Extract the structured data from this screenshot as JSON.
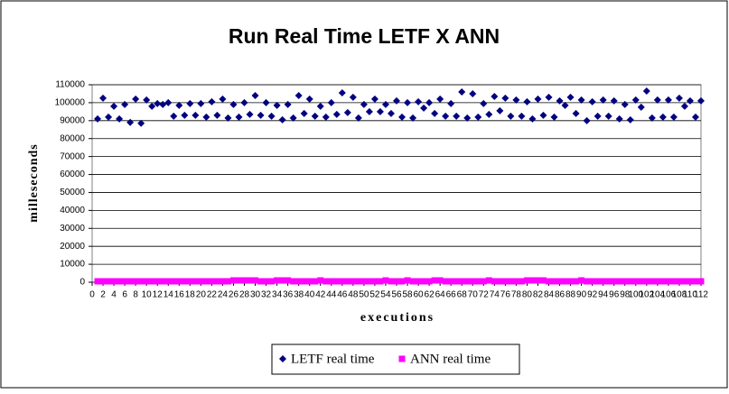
{
  "chart_data": {
    "type": "scatter",
    "title": "Run Real Time LETF X ANN",
    "x_label": "executions",
    "y_label": "milleseconds",
    "x": [
      1,
      2,
      3,
      4,
      5,
      6,
      7,
      8,
      9,
      10,
      11,
      12,
      13,
      14,
      15,
      16,
      17,
      18,
      19,
      20,
      21,
      22,
      23,
      24,
      25,
      26,
      27,
      28,
      29,
      30,
      31,
      32,
      33,
      34,
      35,
      36,
      37,
      38,
      39,
      40,
      41,
      42,
      43,
      44,
      45,
      46,
      47,
      48,
      49,
      50,
      51,
      52,
      53,
      54,
      55,
      56,
      57,
      58,
      59,
      60,
      61,
      62,
      63,
      64,
      65,
      66,
      67,
      68,
      69,
      70,
      71,
      72,
      73,
      74,
      75,
      76,
      77,
      78,
      79,
      80,
      81,
      82,
      83,
      84,
      85,
      86,
      87,
      88,
      89,
      90,
      91,
      92,
      93,
      94,
      95,
      96,
      97,
      98,
      99,
      100,
      101,
      102,
      103,
      104,
      105,
      106,
      107,
      108,
      109,
      110,
      111,
      112
    ],
    "series": [
      {
        "name": "LETF real time",
        "color": "#000080",
        "marker": "diamond",
        "values": [
          91000,
          102500,
          92000,
          98000,
          91000,
          99000,
          89000,
          102000,
          88500,
          101500,
          98000,
          99500,
          99000,
          100000,
          92500,
          98500,
          93000,
          99500,
          93000,
          99500,
          92000,
          100500,
          93000,
          102000,
          91500,
          99000,
          92000,
          100000,
          93500,
          104000,
          93000,
          100000,
          92500,
          98500,
          90500,
          99000,
          91500,
          104000,
          94000,
          102000,
          92500,
          98000,
          92000,
          100000,
          93500,
          105500,
          94500,
          103000,
          91500,
          99000,
          95000,
          102000,
          95000,
          99000,
          94000,
          101000,
          92000,
          100000,
          91500,
          100500,
          97000,
          100000,
          94000,
          102000,
          92500,
          99500,
          92500,
          106000,
          91500,
          105000,
          92000,
          99500,
          93500,
          103500,
          95500,
          102500,
          92500,
          101500,
          92500,
          100500,
          91000,
          102000,
          93000,
          103000,
          92000,
          101000,
          98500,
          103000,
          94000,
          101500,
          90000,
          100500,
          92500,
          101500,
          92500,
          101000,
          91000,
          99000,
          90500,
          101500,
          97500,
          106500,
          91500,
          101500,
          92000,
          101500,
          92000,
          102500,
          98000,
          101000,
          92000,
          101000
        ]
      },
      {
        "name": "ANN real time",
        "color": "#ff00ff",
        "marker": "square",
        "values": [
          500,
          500,
          500,
          500,
          500,
          500,
          500,
          500,
          500,
          500,
          500,
          500,
          500,
          500,
          500,
          500,
          500,
          500,
          500,
          500,
          500,
          500,
          500,
          500,
          500,
          1000,
          1000,
          1000,
          1000,
          1000,
          500,
          500,
          500,
          1000,
          1000,
          1000,
          500,
          500,
          500,
          500,
          500,
          1000,
          500,
          500,
          500,
          500,
          500,
          500,
          500,
          500,
          500,
          500,
          500,
          1000,
          500,
          500,
          500,
          1000,
          500,
          500,
          500,
          500,
          1000,
          1000,
          500,
          500,
          500,
          500,
          500,
          500,
          500,
          500,
          1000,
          500,
          500,
          500,
          500,
          500,
          500,
          1000,
          1000,
          1000,
          1000,
          500,
          500,
          500,
          500,
          500,
          500,
          1000,
          500,
          500,
          500,
          500,
          500,
          500,
          500,
          500,
          500,
          500,
          500,
          500,
          500,
          500,
          500,
          500,
          500,
          500,
          500,
          500,
          500,
          500
        ]
      }
    ],
    "xlim": [
      0,
      112
    ],
    "xticks": [
      0,
      2,
      4,
      6,
      8,
      10,
      12,
      14,
      16,
      18,
      20,
      22,
      24,
      26,
      28,
      30,
      32,
      34,
      36,
      38,
      40,
      42,
      44,
      46,
      48,
      50,
      52,
      54,
      56,
      58,
      60,
      62,
      64,
      66,
      68,
      70,
      72,
      74,
      76,
      78,
      80,
      82,
      84,
      86,
      88,
      90,
      92,
      94,
      96,
      98,
      100,
      102,
      104,
      106,
      108,
      110,
      112
    ],
    "ylim": [
      0,
      110000
    ],
    "yticks": [
      0,
      10000,
      20000,
      30000,
      40000,
      50000,
      60000,
      70000,
      80000,
      90000,
      100000,
      110000
    ],
    "grid": true,
    "legend": "bottom"
  }
}
